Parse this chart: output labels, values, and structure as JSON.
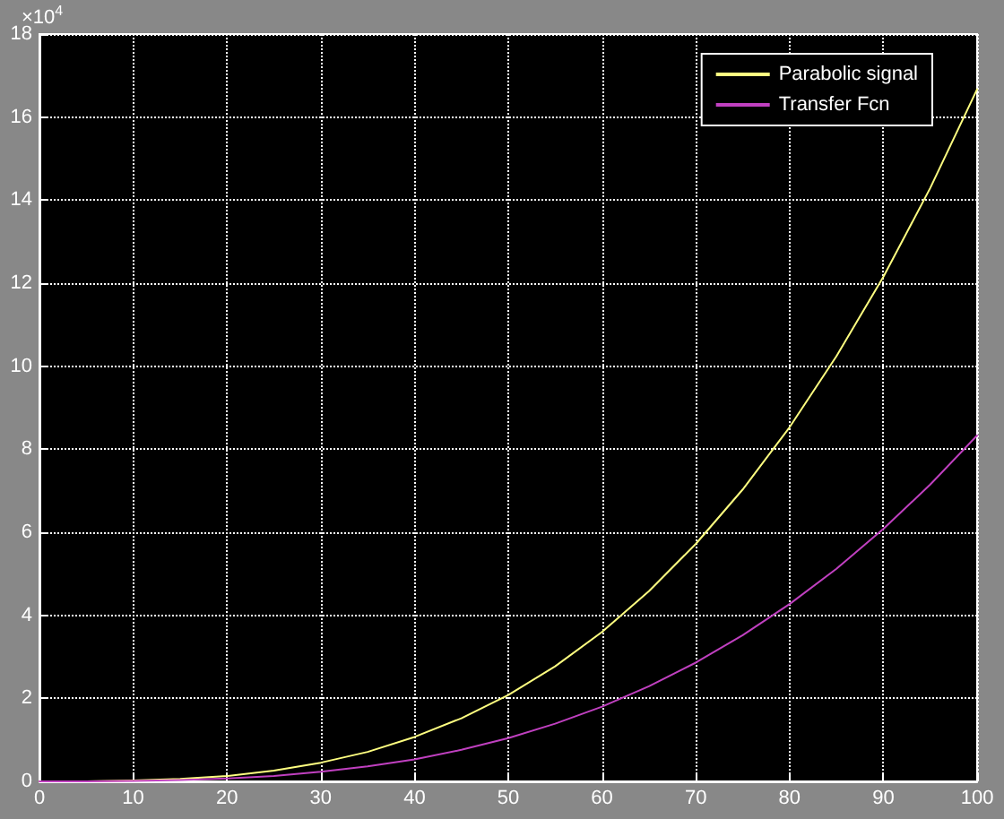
{
  "chart_data": {
    "type": "line",
    "x": [
      0,
      5,
      10,
      15,
      20,
      25,
      30,
      35,
      40,
      45,
      50,
      55,
      60,
      65,
      70,
      75,
      80,
      85,
      90,
      95,
      100
    ],
    "series": [
      {
        "name": "Parabolic signal",
        "color": "#ffff80",
        "values": [
          0,
          0,
          0.02,
          0.06,
          0.13,
          0.26,
          0.45,
          0.71,
          1.07,
          1.52,
          2.08,
          2.77,
          3.6,
          4.58,
          5.72,
          7.03,
          8.53,
          10.24,
          12.15,
          14.29,
          16.67
        ]
      },
      {
        "name": "Transfer Fcn",
        "color": "#c040c0",
        "values": [
          0,
          0,
          0.01,
          0.03,
          0.07,
          0.13,
          0.23,
          0.36,
          0.53,
          0.76,
          1.04,
          1.39,
          1.8,
          2.29,
          2.86,
          3.52,
          4.27,
          5.12,
          6.08,
          7.15,
          8.33
        ]
      }
    ],
    "xlim": [
      0,
      100
    ],
    "xticks": [
      0,
      10,
      20,
      30,
      40,
      50,
      60,
      70,
      80,
      90,
      100
    ],
    "ylim": [
      0,
      18
    ],
    "yticks": [
      0,
      2,
      4,
      6,
      8,
      10,
      12,
      14,
      16,
      18
    ],
    "annotations": [
      "×10$^{4}$"
    ],
    "grid": true,
    "legend": "top right",
    "marker": "none",
    "line_style": "solid"
  }
}
